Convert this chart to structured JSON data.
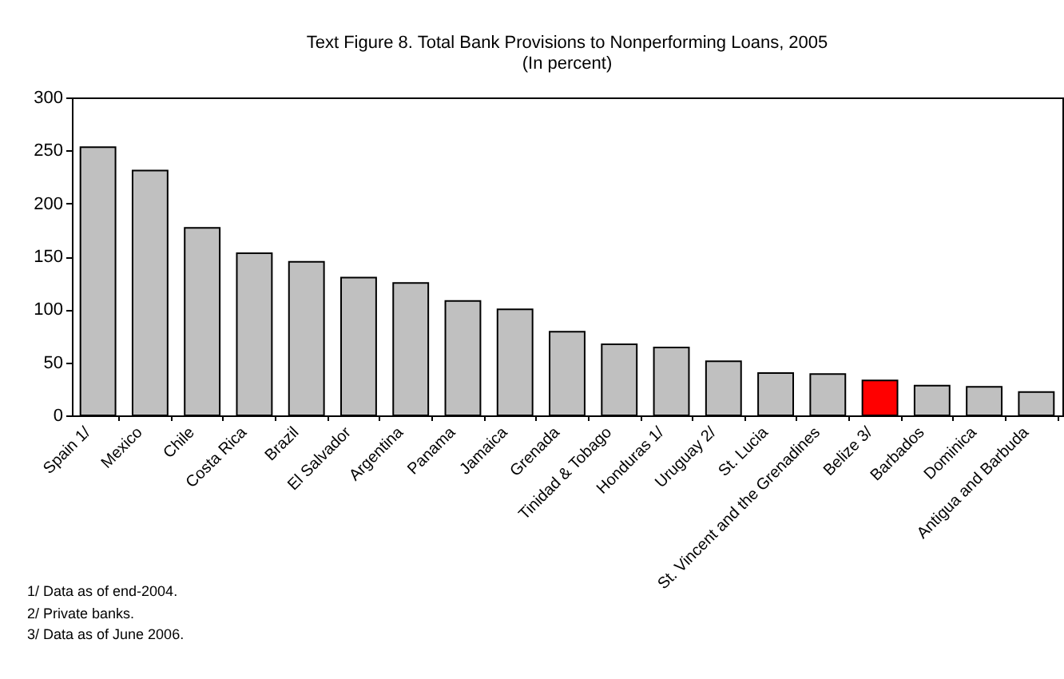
{
  "chart_data": {
    "type": "bar",
    "title": "Text Figure 8. Total Bank Provisions to Nonperforming Loans, 2005",
    "subtitle": "(In percent)",
    "categories": [
      "Spain 1/",
      "Mexico",
      "Chile",
      "Costa Rica",
      "Brazil",
      "El Salvador",
      "Argentina",
      "Panama",
      "Jamaica",
      "Grenada",
      "Tinidad & Tobago",
      "Honduras 1/",
      "Uruguay 2/",
      "St. Lucia",
      "St. Vincent and the Grenadines",
      "Belize 3/",
      "Barbados",
      "Dominica",
      "Antigua and Barbuda"
    ],
    "values": [
      253,
      231,
      177,
      153,
      145,
      130,
      125,
      108,
      100,
      79,
      67,
      64,
      51,
      40,
      39,
      33,
      28,
      27,
      22
    ],
    "colors": [
      "#c0c0c0",
      "#c0c0c0",
      "#c0c0c0",
      "#c0c0c0",
      "#c0c0c0",
      "#c0c0c0",
      "#c0c0c0",
      "#c0c0c0",
      "#c0c0c0",
      "#c0c0c0",
      "#c0c0c0",
      "#c0c0c0",
      "#c0c0c0",
      "#c0c0c0",
      "#c0c0c0",
      "#ff0000",
      "#c0c0c0",
      "#c0c0c0",
      "#c0c0c0"
    ],
    "ylim": [
      0,
      300
    ],
    "yticks": [
      0,
      50,
      100,
      150,
      200,
      250,
      300
    ],
    "grid": false,
    "legend": false,
    "annotations": [
      "1/ Data as of end-2004.",
      "2/ Private banks.",
      "3/ Data as of June 2006."
    ]
  }
}
